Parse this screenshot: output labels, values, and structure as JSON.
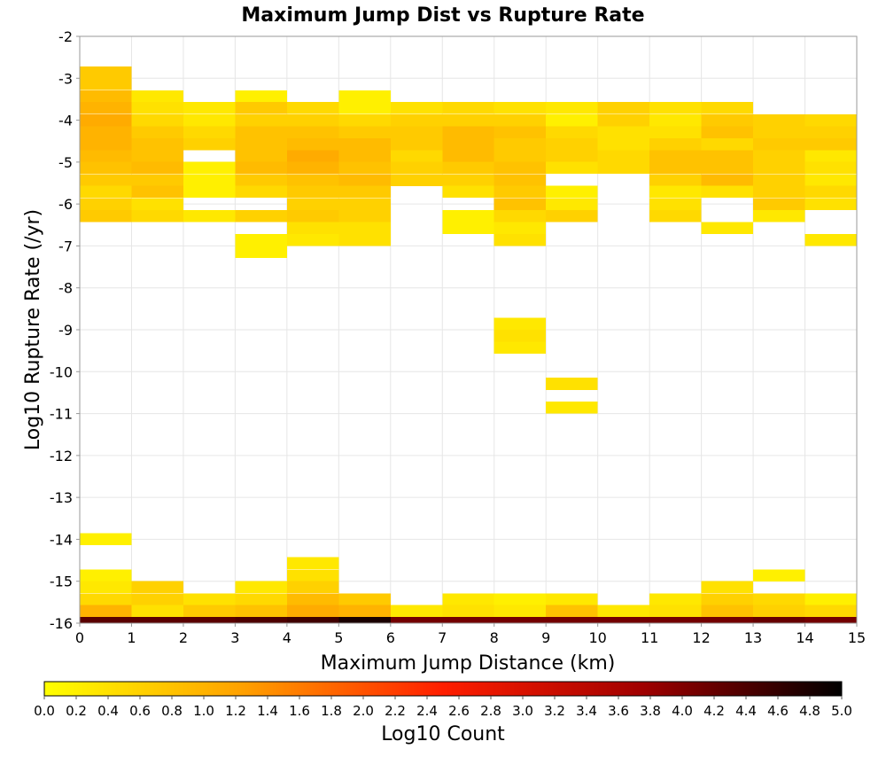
{
  "chart_data": {
    "type": "heatmap",
    "title": "Maximum Jump Dist vs Rupture Rate",
    "xlabel": "Maximum Jump Distance (km)",
    "ylabel": "Log10 Rupture Rate (/yr)",
    "xlim": [
      0,
      15
    ],
    "ylim": [
      -16,
      -2
    ],
    "x_ticks": [
      "0",
      "1",
      "2",
      "3",
      "4",
      "5",
      "6",
      "7",
      "8",
      "9",
      "10",
      "11",
      "12",
      "13",
      "14",
      "15"
    ],
    "y_ticks": [
      "-2",
      "-3",
      "-4",
      "-5",
      "-6",
      "-7",
      "-8",
      "-9",
      "-10",
      "-11",
      "-12",
      "-13",
      "-14",
      "-15",
      "-16"
    ],
    "grid": true,
    "x_bin_width": 1,
    "y_bin_height": 0.2857,
    "colorbar": {
      "label": "Log10 Count",
      "min": 0.0,
      "max": 5.0,
      "tick_labels": [
        "0.0",
        "0.2",
        "0.4",
        "0.6",
        "0.8",
        "1.0",
        "1.2",
        "1.4",
        "1.6",
        "1.8",
        "2.0",
        "2.2",
        "2.4",
        "2.6",
        "2.8",
        "3.0",
        "3.2",
        "3.4",
        "3.6",
        "3.8",
        "4.0",
        "4.2",
        "4.4",
        "4.6",
        "4.8",
        "5.0"
      ],
      "colors": [
        "#ffff00",
        "#ffa000",
        "#ff1e00",
        "#a00000",
        "#000000"
      ]
    },
    "cells": [
      [
        0,
        -2.86,
        0.7
      ],
      [
        0,
        -3.14,
        0.7
      ],
      [
        0,
        -3.43,
        0.9
      ],
      [
        0,
        -3.71,
        1.0
      ],
      [
        0,
        -4.0,
        1.1
      ],
      [
        0,
        -4.29,
        1.0
      ],
      [
        0,
        -4.57,
        1.0
      ],
      [
        0,
        -4.86,
        0.9
      ],
      [
        0,
        -5.14,
        0.8
      ],
      [
        0,
        -5.43,
        0.7
      ],
      [
        0,
        -5.71,
        0.5
      ],
      [
        0,
        -6.0,
        0.6
      ],
      [
        0,
        -6.29,
        0.7
      ],
      [
        0,
        -14.0,
        0.2
      ],
      [
        0,
        -14.86,
        0.2
      ],
      [
        0,
        -15.14,
        0.3
      ],
      [
        0,
        -15.43,
        0.5
      ],
      [
        0,
        -15.71,
        1.0
      ],
      [
        1,
        -3.43,
        0.3
      ],
      [
        1,
        -3.71,
        0.4
      ],
      [
        1,
        -4.0,
        0.5
      ],
      [
        1,
        -4.29,
        0.7
      ],
      [
        1,
        -4.57,
        0.8
      ],
      [
        1,
        -4.86,
        0.8
      ],
      [
        1,
        -5.14,
        0.9
      ],
      [
        1,
        -5.43,
        0.7
      ],
      [
        1,
        -5.71,
        0.8
      ],
      [
        1,
        -6.0,
        0.4
      ],
      [
        1,
        -6.29,
        0.5
      ],
      [
        1,
        -15.14,
        0.6
      ],
      [
        1,
        -15.43,
        0.6
      ],
      [
        1,
        -15.71,
        0.4
      ],
      [
        2,
        -3.71,
        0.3
      ],
      [
        2,
        -4.0,
        0.3
      ],
      [
        2,
        -4.29,
        0.5
      ],
      [
        2,
        -4.57,
        0.6
      ],
      [
        2,
        -5.14,
        0.2
      ],
      [
        2,
        -5.43,
        0.2
      ],
      [
        2,
        -5.71,
        0.2
      ],
      [
        2,
        -6.29,
        0.3
      ],
      [
        2,
        -15.43,
        0.4
      ],
      [
        2,
        -15.71,
        0.7
      ],
      [
        3,
        -3.43,
        0.2
      ],
      [
        3,
        -3.71,
        0.7
      ],
      [
        3,
        -4.0,
        0.6
      ],
      [
        3,
        -4.29,
        0.8
      ],
      [
        3,
        -4.57,
        0.8
      ],
      [
        3,
        -4.86,
        0.8
      ],
      [
        3,
        -5.14,
        0.9
      ],
      [
        3,
        -5.43,
        0.7
      ],
      [
        3,
        -5.71,
        0.5
      ],
      [
        3,
        -6.29,
        0.6
      ],
      [
        3,
        -6.86,
        0.2
      ],
      [
        3,
        -7.14,
        0.2
      ],
      [
        3,
        -15.14,
        0.3
      ],
      [
        3,
        -15.43,
        0.5
      ],
      [
        3,
        -15.71,
        0.8
      ],
      [
        4,
        -3.71,
        0.5
      ],
      [
        4,
        -4.0,
        0.6
      ],
      [
        4,
        -4.29,
        0.8
      ],
      [
        4,
        -4.57,
        0.9
      ],
      [
        4,
        -4.86,
        1.1
      ],
      [
        4,
        -5.14,
        1.0
      ],
      [
        4,
        -5.43,
        0.8
      ],
      [
        4,
        -5.71,
        0.7
      ],
      [
        4,
        -6.0,
        0.6
      ],
      [
        4,
        -6.29,
        0.7
      ],
      [
        4,
        -6.57,
        0.4
      ],
      [
        4,
        -6.86,
        0.3
      ],
      [
        4,
        -14.57,
        0.3
      ],
      [
        4,
        -14.86,
        0.4
      ],
      [
        4,
        -15.14,
        0.6
      ],
      [
        4,
        -15.43,
        0.9
      ],
      [
        4,
        -15.71,
        1.1
      ],
      [
        5,
        -3.43,
        0.2
      ],
      [
        5,
        -3.71,
        0.2
      ],
      [
        5,
        -4.0,
        0.5
      ],
      [
        5,
        -4.29,
        0.7
      ],
      [
        5,
        -4.57,
        0.9
      ],
      [
        5,
        -4.86,
        0.9
      ],
      [
        5,
        -5.14,
        0.8
      ],
      [
        5,
        -5.43,
        0.9
      ],
      [
        5,
        -5.71,
        0.7
      ],
      [
        5,
        -6.0,
        0.6
      ],
      [
        5,
        -6.29,
        0.6
      ],
      [
        5,
        -6.57,
        0.4
      ],
      [
        5,
        -6.86,
        0.4
      ],
      [
        5,
        -15.43,
        0.7
      ],
      [
        5,
        -15.71,
        1.0
      ],
      [
        6,
        -3.71,
        0.4
      ],
      [
        6,
        -4.0,
        0.6
      ],
      [
        6,
        -4.29,
        0.7
      ],
      [
        6,
        -4.57,
        0.7
      ],
      [
        6,
        -4.86,
        0.5
      ],
      [
        6,
        -5.14,
        0.6
      ],
      [
        6,
        -5.43,
        0.6
      ],
      [
        6,
        -15.71,
        0.3
      ],
      [
        7,
        -3.71,
        0.5
      ],
      [
        7,
        -4.0,
        0.6
      ],
      [
        7,
        -4.29,
        0.9
      ],
      [
        7,
        -4.57,
        0.9
      ],
      [
        7,
        -4.86,
        0.9
      ],
      [
        7,
        -5.14,
        0.7
      ],
      [
        7,
        -5.43,
        0.6
      ],
      [
        7,
        -5.71,
        0.4
      ],
      [
        7,
        -6.29,
        0.2
      ],
      [
        7,
        -6.57,
        0.2
      ],
      [
        7,
        -15.43,
        0.3
      ],
      [
        7,
        -15.71,
        0.4
      ],
      [
        8,
        -3.71,
        0.4
      ],
      [
        8,
        -4.0,
        0.6
      ],
      [
        8,
        -4.29,
        0.8
      ],
      [
        8,
        -4.57,
        0.7
      ],
      [
        8,
        -4.86,
        0.7
      ],
      [
        8,
        -5.14,
        0.8
      ],
      [
        8,
        -5.43,
        0.8
      ],
      [
        8,
        -5.71,
        0.7
      ],
      [
        8,
        -6.0,
        0.8
      ],
      [
        8,
        -6.29,
        0.5
      ],
      [
        8,
        -6.57,
        0.3
      ],
      [
        8,
        -6.86,
        0.4
      ],
      [
        8,
        -8.86,
        0.3
      ],
      [
        8,
        -9.14,
        0.4
      ],
      [
        8,
        -9.43,
        0.3
      ],
      [
        8,
        -15.43,
        0.2
      ],
      [
        8,
        -15.71,
        0.3
      ],
      [
        9,
        -3.71,
        0.3
      ],
      [
        9,
        -4.0,
        0.2
      ],
      [
        9,
        -4.29,
        0.5
      ],
      [
        9,
        -4.57,
        0.6
      ],
      [
        9,
        -4.86,
        0.6
      ],
      [
        9,
        -5.14,
        0.4
      ],
      [
        9,
        -5.71,
        0.2
      ],
      [
        9,
        -6.0,
        0.3
      ],
      [
        9,
        -6.29,
        0.6
      ],
      [
        9,
        -10.29,
        0.4
      ],
      [
        9,
        -10.86,
        0.3
      ],
      [
        9,
        -15.43,
        0.3
      ],
      [
        9,
        -15.71,
        0.8
      ],
      [
        10,
        -3.71,
        0.6
      ],
      [
        10,
        -4.0,
        0.6
      ],
      [
        10,
        -4.29,
        0.4
      ],
      [
        10,
        -4.57,
        0.4
      ],
      [
        10,
        -4.86,
        0.5
      ],
      [
        10,
        -5.14,
        0.5
      ],
      [
        10,
        -15.71,
        0.3
      ],
      [
        11,
        -3.71,
        0.4
      ],
      [
        11,
        -4.0,
        0.3
      ],
      [
        11,
        -4.29,
        0.4
      ],
      [
        11,
        -4.57,
        0.6
      ],
      [
        11,
        -4.86,
        0.8
      ],
      [
        11,
        -5.14,
        0.8
      ],
      [
        11,
        -5.43,
        0.6
      ],
      [
        11,
        -5.71,
        0.3
      ],
      [
        11,
        -6.0,
        0.4
      ],
      [
        11,
        -6.29,
        0.5
      ],
      [
        11,
        -15.43,
        0.3
      ],
      [
        11,
        -15.71,
        0.4
      ],
      [
        12,
        -3.71,
        0.5
      ],
      [
        12,
        -4.0,
        0.7
      ],
      [
        12,
        -4.29,
        0.8
      ],
      [
        12,
        -4.57,
        0.5
      ],
      [
        12,
        -4.86,
        0.8
      ],
      [
        12,
        -5.14,
        0.8
      ],
      [
        12,
        -5.43,
        0.9
      ],
      [
        12,
        -5.71,
        0.4
      ],
      [
        12,
        -6.57,
        0.3
      ],
      [
        12,
        -15.14,
        0.4
      ],
      [
        12,
        -15.43,
        0.6
      ],
      [
        12,
        -15.71,
        0.8
      ],
      [
        13,
        -4.0,
        0.6
      ],
      [
        13,
        -4.29,
        0.6
      ],
      [
        13,
        -4.57,
        0.7
      ],
      [
        13,
        -4.86,
        0.6
      ],
      [
        13,
        -5.14,
        0.6
      ],
      [
        13,
        -5.43,
        0.6
      ],
      [
        13,
        -5.71,
        0.6
      ],
      [
        13,
        -6.0,
        0.7
      ],
      [
        13,
        -6.29,
        0.3
      ],
      [
        13,
        -14.86,
        0.2
      ],
      [
        13,
        -15.43,
        0.5
      ],
      [
        13,
        -15.71,
        0.6
      ],
      [
        14,
        -4.0,
        0.5
      ],
      [
        14,
        -4.29,
        0.6
      ],
      [
        14,
        -4.57,
        0.7
      ],
      [
        14,
        -4.86,
        0.3
      ],
      [
        14,
        -5.14,
        0.4
      ],
      [
        14,
        -5.43,
        0.3
      ],
      [
        14,
        -5.71,
        0.5
      ],
      [
        14,
        -6.0,
        0.4
      ],
      [
        14,
        -6.86,
        0.3
      ],
      [
        14,
        -15.43,
        0.2
      ],
      [
        14,
        -15.71,
        0.5
      ],
      [
        0,
        -16.0,
        4.3
      ],
      [
        1,
        -16.0,
        4.3
      ],
      [
        2,
        -16.0,
        4.3
      ],
      [
        3,
        -16.0,
        4.4
      ],
      [
        4,
        -16.0,
        4.5
      ],
      [
        5,
        -16.0,
        4.8
      ],
      [
        6,
        -16.0,
        4.1
      ],
      [
        7,
        -16.0,
        4.1
      ],
      [
        8,
        -16.0,
        4.1
      ],
      [
        9,
        -16.0,
        4.1
      ],
      [
        10,
        -16.0,
        4.1
      ],
      [
        11,
        -16.0,
        4.1
      ],
      [
        12,
        -16.0,
        4.1
      ],
      [
        13,
        -16.0,
        4.2
      ],
      [
        14,
        -16.0,
        4.1
      ]
    ]
  }
}
